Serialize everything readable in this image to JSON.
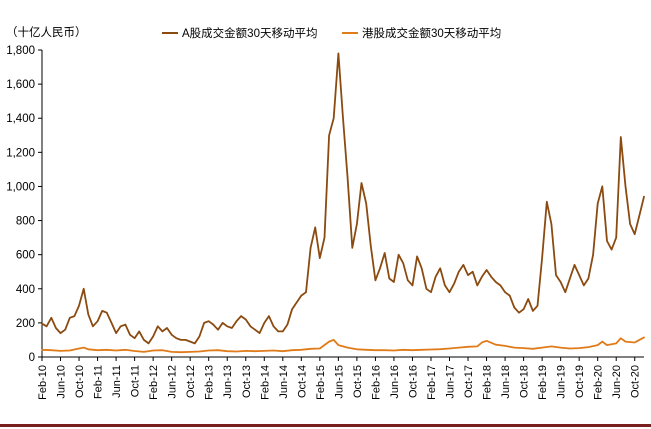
{
  "chart_data": {
    "type": "line",
    "unit_label": "（十亿人民币）",
    "ylim": [
      0,
      1800
    ],
    "yticks": [
      0,
      200,
      400,
      600,
      800,
      1000,
      1200,
      1400,
      1600,
      1800
    ],
    "ytick_labels": [
      "0",
      "200",
      "400",
      "600",
      "800",
      "1,000",
      "1,200",
      "1,400",
      "1,600",
      "1,800"
    ],
    "xlim": [
      "2010-02",
      "2020-12"
    ],
    "xticks": [
      "2010-02",
      "2010-06",
      "2010-10",
      "2011-02",
      "2011-06",
      "2011-10",
      "2012-02",
      "2012-06",
      "2012-10",
      "2013-02",
      "2013-06",
      "2013-10",
      "2014-02",
      "2014-06",
      "2014-10",
      "2015-02",
      "2015-06",
      "2015-10",
      "2016-02",
      "2016-06",
      "2016-10",
      "2017-02",
      "2017-06",
      "2017-10",
      "2018-02",
      "2018-06",
      "2018-10",
      "2019-02",
      "2019-06",
      "2019-10",
      "2020-02",
      "2020-06",
      "2020-10"
    ],
    "xtick_labels": [
      "Feb-10",
      "Jun-10",
      "Oct-10",
      "Feb-11",
      "Jun-11",
      "Oct-11",
      "Feb-12",
      "Jun-12",
      "Oct-12",
      "Feb-13",
      "Jun-13",
      "Oct-13",
      "Feb-14",
      "Jun-14",
      "Oct-14",
      "Feb-15",
      "Jun-15",
      "Oct-15",
      "Feb-16",
      "Jun-16",
      "Oct-16",
      "Feb-17",
      "Jun-17",
      "Oct-17",
      "Feb-18",
      "Jun-18",
      "Oct-18",
      "Feb-19",
      "Jun-19",
      "Oct-19",
      "Feb-20",
      "Jun-20",
      "Oct-20"
    ],
    "legend_position": "top",
    "grid": false,
    "series": [
      {
        "name": "A股成交金额30天移动平均",
        "color": "#8b4a10",
        "points": [
          [
            "2010-02",
            195
          ],
          [
            "2010-03",
            180
          ],
          [
            "2010-04",
            230
          ],
          [
            "2010-05",
            170
          ],
          [
            "2010-06",
            140
          ],
          [
            "2010-07",
            160
          ],
          [
            "2010-08",
            230
          ],
          [
            "2010-09",
            240
          ],
          [
            "2010-10",
            300
          ],
          [
            "2010-11",
            400
          ],
          [
            "2010-12",
            250
          ],
          [
            "2011-01",
            180
          ],
          [
            "2011-02",
            210
          ],
          [
            "2011-03",
            270
          ],
          [
            "2011-04",
            260
          ],
          [
            "2011-05",
            200
          ],
          [
            "2011-06",
            140
          ],
          [
            "2011-07",
            180
          ],
          [
            "2011-08",
            190
          ],
          [
            "2011-09",
            130
          ],
          [
            "2011-10",
            110
          ],
          [
            "2011-11",
            150
          ],
          [
            "2011-12",
            100
          ],
          [
            "2012-01",
            80
          ],
          [
            "2012-02",
            120
          ],
          [
            "2012-03",
            180
          ],
          [
            "2012-04",
            150
          ],
          [
            "2012-05",
            170
          ],
          [
            "2012-06",
            130
          ],
          [
            "2012-07",
            110
          ],
          [
            "2012-08",
            100
          ],
          [
            "2012-09",
            100
          ],
          [
            "2012-10",
            90
          ],
          [
            "2012-11",
            80
          ],
          [
            "2012-12",
            120
          ],
          [
            "2013-01",
            200
          ],
          [
            "2013-02",
            210
          ],
          [
            "2013-03",
            190
          ],
          [
            "2013-04",
            160
          ],
          [
            "2013-05",
            200
          ],
          [
            "2013-06",
            180
          ],
          [
            "2013-07",
            170
          ],
          [
            "2013-08",
            210
          ],
          [
            "2013-09",
            240
          ],
          [
            "2013-10",
            220
          ],
          [
            "2013-11",
            180
          ],
          [
            "2013-12",
            160
          ],
          [
            "2014-01",
            140
          ],
          [
            "2014-02",
            200
          ],
          [
            "2014-03",
            240
          ],
          [
            "2014-04",
            180
          ],
          [
            "2014-05",
            150
          ],
          [
            "2014-06",
            150
          ],
          [
            "2014-07",
            190
          ],
          [
            "2014-08",
            280
          ],
          [
            "2014-09",
            320
          ],
          [
            "2014-10",
            360
          ],
          [
            "2014-11",
            380
          ],
          [
            "2014-12",
            640
          ],
          [
            "2015-01",
            760
          ],
          [
            "2015-02",
            580
          ],
          [
            "2015-03",
            700
          ],
          [
            "2015-04",
            1300
          ],
          [
            "2015-05",
            1400
          ],
          [
            "2015-06",
            1780
          ],
          [
            "2015-07",
            1400
          ],
          [
            "2015-08",
            1050
          ],
          [
            "2015-09",
            640
          ],
          [
            "2015-10",
            780
          ],
          [
            "2015-11",
            1020
          ],
          [
            "2015-12",
            900
          ],
          [
            "2016-01",
            650
          ],
          [
            "2016-02",
            450
          ],
          [
            "2016-03",
            520
          ],
          [
            "2016-04",
            610
          ],
          [
            "2016-05",
            460
          ],
          [
            "2016-06",
            440
          ],
          [
            "2016-07",
            600
          ],
          [
            "2016-08",
            550
          ],
          [
            "2016-09",
            450
          ],
          [
            "2016-10",
            420
          ],
          [
            "2016-11",
            590
          ],
          [
            "2016-12",
            520
          ],
          [
            "2017-01",
            400
          ],
          [
            "2017-02",
            380
          ],
          [
            "2017-03",
            470
          ],
          [
            "2017-04",
            520
          ],
          [
            "2017-05",
            420
          ],
          [
            "2017-06",
            380
          ],
          [
            "2017-07",
            430
          ],
          [
            "2017-08",
            500
          ],
          [
            "2017-09",
            540
          ],
          [
            "2017-10",
            480
          ],
          [
            "2017-11",
            500
          ],
          [
            "2017-12",
            420
          ],
          [
            "2018-01",
            470
          ],
          [
            "2018-02",
            510
          ],
          [
            "2018-03",
            470
          ],
          [
            "2018-04",
            440
          ],
          [
            "2018-05",
            420
          ],
          [
            "2018-06",
            380
          ],
          [
            "2018-07",
            360
          ],
          [
            "2018-08",
            290
          ],
          [
            "2018-09",
            260
          ],
          [
            "2018-10",
            280
          ],
          [
            "2018-11",
            340
          ],
          [
            "2018-12",
            270
          ],
          [
            "2019-01",
            300
          ],
          [
            "2019-02",
            580
          ],
          [
            "2019-03",
            910
          ],
          [
            "2019-04",
            780
          ],
          [
            "2019-05",
            480
          ],
          [
            "2019-06",
            440
          ],
          [
            "2019-07",
            380
          ],
          [
            "2019-08",
            460
          ],
          [
            "2019-09",
            540
          ],
          [
            "2019-10",
            480
          ],
          [
            "2019-11",
            420
          ],
          [
            "2019-12",
            460
          ],
          [
            "2020-01",
            600
          ],
          [
            "2020-02",
            900
          ],
          [
            "2020-03",
            1000
          ],
          [
            "2020-04",
            680
          ],
          [
            "2020-05",
            630
          ],
          [
            "2020-06",
            700
          ],
          [
            "2020-07",
            1290
          ],
          [
            "2020-08",
            1000
          ],
          [
            "2020-09",
            780
          ],
          [
            "2020-10",
            720
          ],
          [
            "2020-11",
            830
          ],
          [
            "2020-12",
            940
          ]
        ]
      },
      {
        "name": "港股成交金额30天移动平均",
        "color": "#e07b1a",
        "points": [
          [
            "2010-02",
            42
          ],
          [
            "2010-04",
            40
          ],
          [
            "2010-06",
            36
          ],
          [
            "2010-08",
            38
          ],
          [
            "2010-10",
            50
          ],
          [
            "2010-11",
            55
          ],
          [
            "2010-12",
            45
          ],
          [
            "2011-02",
            40
          ],
          [
            "2011-04",
            42
          ],
          [
            "2011-06",
            38
          ],
          [
            "2011-08",
            42
          ],
          [
            "2011-10",
            35
          ],
          [
            "2011-12",
            30
          ],
          [
            "2012-02",
            38
          ],
          [
            "2012-04",
            40
          ],
          [
            "2012-06",
            30
          ],
          [
            "2012-08",
            28
          ],
          [
            "2012-10",
            30
          ],
          [
            "2012-12",
            32
          ],
          [
            "2013-02",
            38
          ],
          [
            "2013-04",
            40
          ],
          [
            "2013-06",
            34
          ],
          [
            "2013-08",
            32
          ],
          [
            "2013-10",
            36
          ],
          [
            "2013-12",
            34
          ],
          [
            "2014-02",
            36
          ],
          [
            "2014-04",
            38
          ],
          [
            "2014-06",
            34
          ],
          [
            "2014-08",
            40
          ],
          [
            "2014-10",
            42
          ],
          [
            "2014-12",
            48
          ],
          [
            "2015-02",
            50
          ],
          [
            "2015-04",
            90
          ],
          [
            "2015-05",
            100
          ],
          [
            "2015-06",
            70
          ],
          [
            "2015-08",
            55
          ],
          [
            "2015-10",
            45
          ],
          [
            "2015-12",
            42
          ],
          [
            "2016-02",
            40
          ],
          [
            "2016-04",
            40
          ],
          [
            "2016-06",
            38
          ],
          [
            "2016-08",
            42
          ],
          [
            "2016-10",
            40
          ],
          [
            "2016-12",
            42
          ],
          [
            "2017-02",
            44
          ],
          [
            "2017-04",
            46
          ],
          [
            "2017-06",
            50
          ],
          [
            "2017-08",
            55
          ],
          [
            "2017-10",
            60
          ],
          [
            "2017-12",
            62
          ],
          [
            "2018-01",
            85
          ],
          [
            "2018-02",
            95
          ],
          [
            "2018-04",
            72
          ],
          [
            "2018-06",
            65
          ],
          [
            "2018-08",
            55
          ],
          [
            "2018-10",
            52
          ],
          [
            "2018-12",
            48
          ],
          [
            "2019-02",
            55
          ],
          [
            "2019-04",
            62
          ],
          [
            "2019-06",
            55
          ],
          [
            "2019-08",
            50
          ],
          [
            "2019-10",
            52
          ],
          [
            "2019-12",
            58
          ],
          [
            "2020-02",
            70
          ],
          [
            "2020-03",
            90
          ],
          [
            "2020-04",
            70
          ],
          [
            "2020-06",
            80
          ],
          [
            "2020-07",
            110
          ],
          [
            "2020-08",
            90
          ],
          [
            "2020-10",
            85
          ],
          [
            "2020-11",
            100
          ],
          [
            "2020-12",
            115
          ]
        ]
      }
    ]
  }
}
